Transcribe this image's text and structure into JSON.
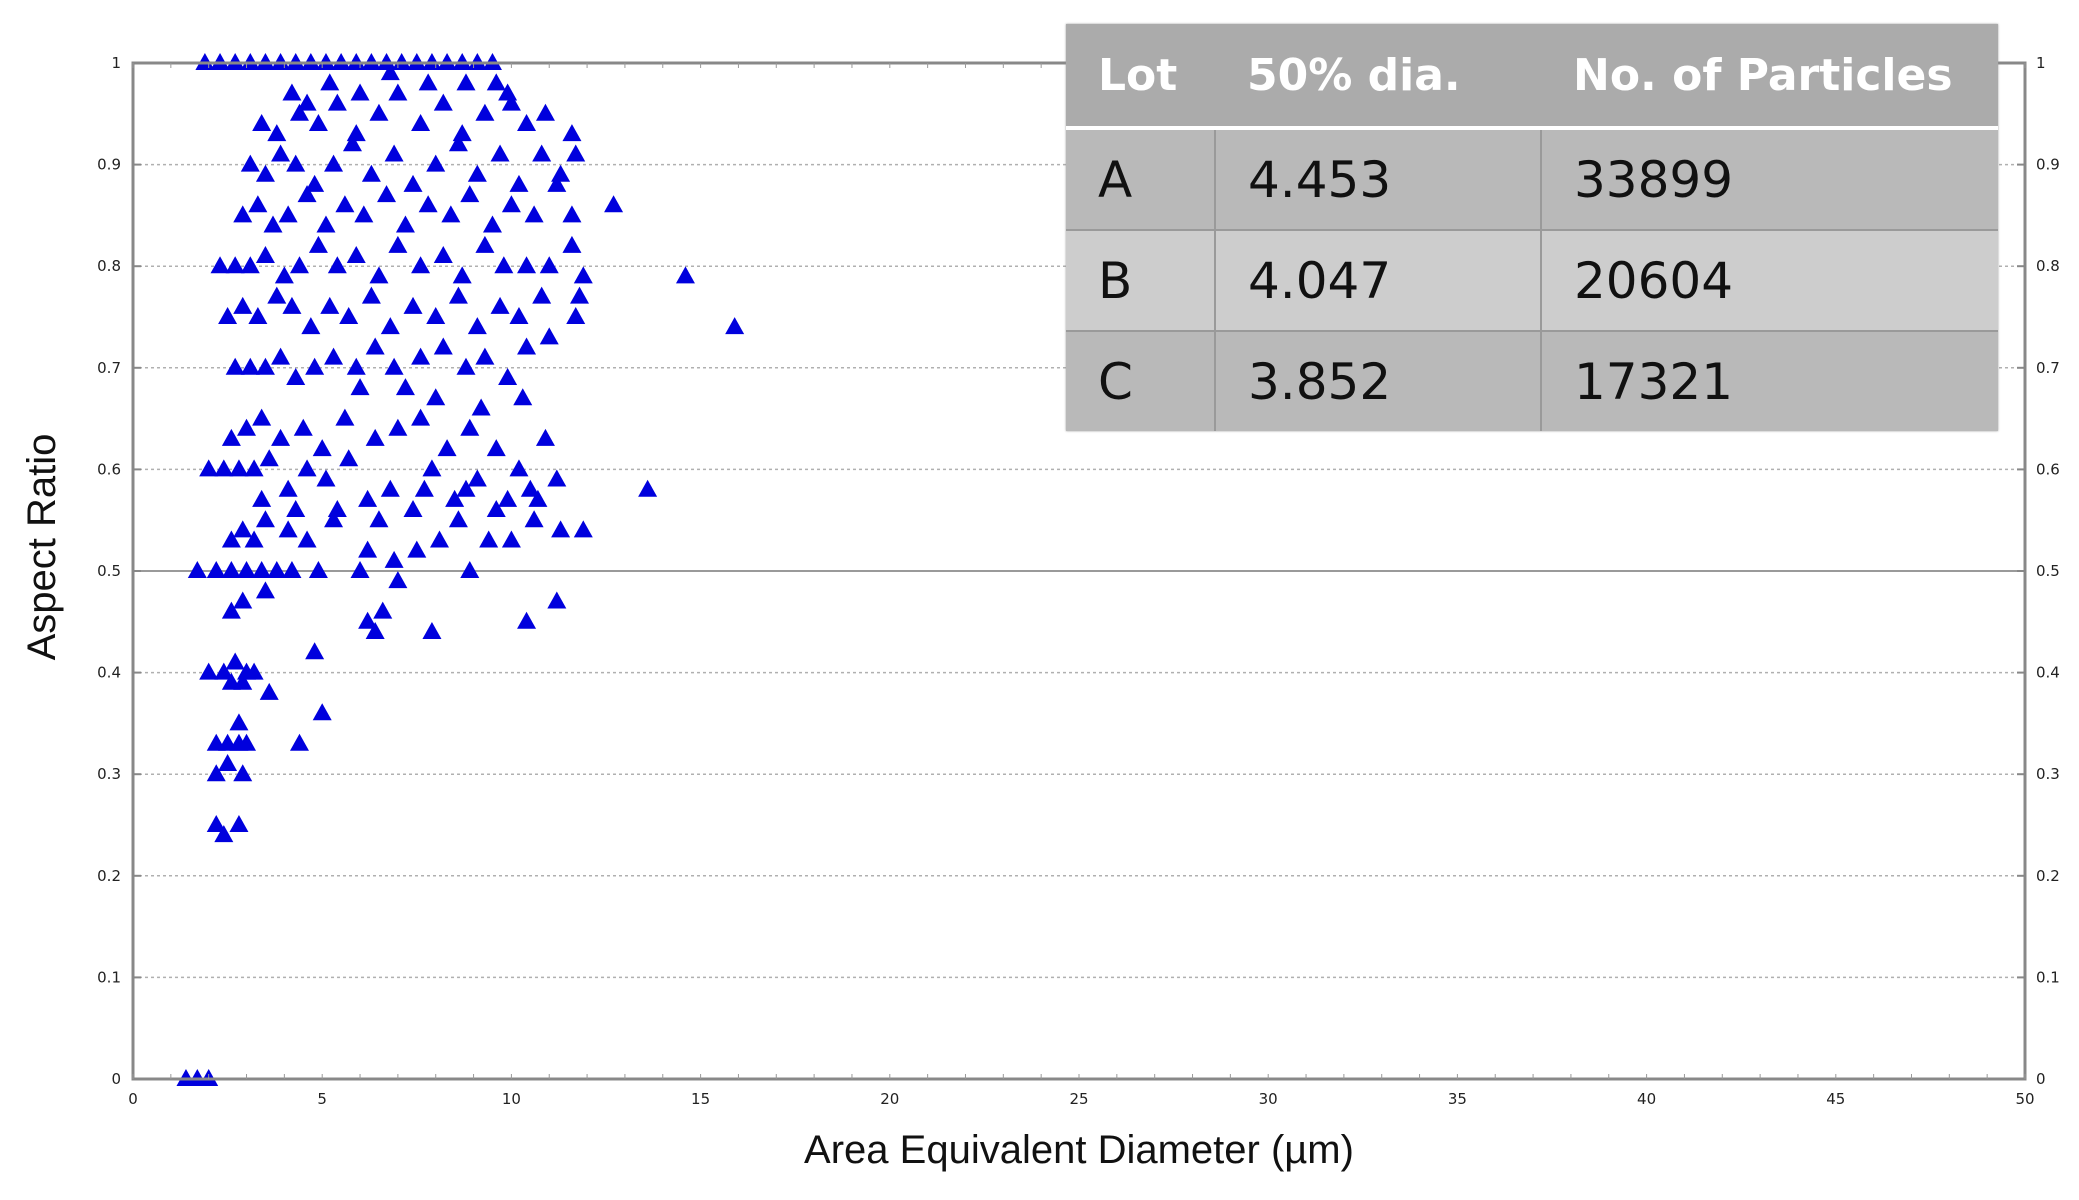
{
  "chart_data": {
    "type": "scatter",
    "title": "",
    "xlabel": "Area Equivalent Diameter (µm)",
    "ylabel": "Aspect Ratio",
    "xlim": [
      0,
      50
    ],
    "ylim": [
      0,
      1
    ],
    "x_ticks": [
      "0",
      "5",
      "10",
      "15",
      "20",
      "25",
      "30",
      "35",
      "40",
      "45",
      "50"
    ],
    "y_ticks": [
      "0",
      "0.1",
      "0.2",
      "0.3",
      "0.4",
      "0.5",
      "0.6",
      "0.7",
      "0.8",
      "0.9",
      "1"
    ],
    "y_ticks_right": [
      "0",
      "0.1",
      "0.2",
      "0.3",
      "0.4",
      "0.5",
      "0.6",
      "0.7",
      "0.8",
      "0.9",
      "1"
    ],
    "grid": "horizontal-dotted",
    "marker": "triangle",
    "marker_color": "#0000dd",
    "series": [
      {
        "points": [
          [
            1.4,
            0
          ],
          [
            1.7,
            0
          ],
          [
            2.0,
            0
          ],
          [
            2.2,
            0.25
          ],
          [
            2.4,
            0.24
          ],
          [
            2.8,
            0.25
          ],
          [
            2.2,
            0.3
          ],
          [
            2.5,
            0.31
          ],
          [
            2.9,
            0.3
          ],
          [
            4.4,
            0.33
          ],
          [
            5.0,
            0.36
          ],
          [
            2.2,
            0.33
          ],
          [
            2.5,
            0.33
          ],
          [
            2.8,
            0.33
          ],
          [
            3.0,
            0.33
          ],
          [
            2.8,
            0.35
          ],
          [
            2.0,
            0.4
          ],
          [
            2.4,
            0.4
          ],
          [
            2.7,
            0.41
          ],
          [
            3.0,
            0.4
          ],
          [
            3.2,
            0.4
          ],
          [
            2.6,
            0.39
          ],
          [
            2.9,
            0.39
          ],
          [
            3.6,
            0.38
          ],
          [
            4.8,
            0.42
          ],
          [
            2.6,
            0.46
          ],
          [
            2.9,
            0.47
          ],
          [
            3.5,
            0.48
          ],
          [
            6.4,
            0.44
          ],
          [
            7.9,
            0.44
          ],
          [
            10.4,
            0.45
          ],
          [
            11.2,
            0.47
          ],
          [
            6.2,
            0.45
          ],
          [
            6.6,
            0.46
          ],
          [
            1.7,
            0.5
          ],
          [
            2.2,
            0.5
          ],
          [
            2.6,
            0.5
          ],
          [
            3.0,
            0.5
          ],
          [
            3.4,
            0.5
          ],
          [
            3.8,
            0.5
          ],
          [
            4.2,
            0.5
          ],
          [
            4.9,
            0.5
          ],
          [
            6.0,
            0.5
          ],
          [
            7.0,
            0.49
          ],
          [
            8.9,
            0.5
          ],
          [
            2.6,
            0.53
          ],
          [
            2.9,
            0.54
          ],
          [
            3.2,
            0.53
          ],
          [
            3.5,
            0.55
          ],
          [
            4.1,
            0.54
          ],
          [
            4.6,
            0.53
          ],
          [
            5.4,
            0.56
          ],
          [
            6.2,
            0.52
          ],
          [
            6.9,
            0.51
          ],
          [
            7.5,
            0.52
          ],
          [
            8.1,
            0.53
          ],
          [
            8.6,
            0.55
          ],
          [
            9.4,
            0.53
          ],
          [
            10.0,
            0.53
          ],
          [
            10.6,
            0.55
          ],
          [
            11.3,
            0.54
          ],
          [
            11.9,
            0.54
          ],
          [
            13.6,
            0.58
          ],
          [
            2.0,
            0.6
          ],
          [
            2.4,
            0.6
          ],
          [
            2.8,
            0.6
          ],
          [
            3.2,
            0.6
          ],
          [
            3.6,
            0.61
          ],
          [
            4.1,
            0.58
          ],
          [
            4.6,
            0.6
          ],
          [
            5.1,
            0.59
          ],
          [
            5.7,
            0.61
          ],
          [
            6.2,
            0.57
          ],
          [
            6.8,
            0.58
          ],
          [
            7.4,
            0.56
          ],
          [
            7.9,
            0.6
          ],
          [
            8.5,
            0.57
          ],
          [
            9.1,
            0.59
          ],
          [
            9.6,
            0.56
          ],
          [
            10.2,
            0.6
          ],
          [
            10.7,
            0.57
          ],
          [
            11.2,
            0.59
          ],
          [
            3.4,
            0.57
          ],
          [
            4.3,
            0.56
          ],
          [
            5.3,
            0.55
          ],
          [
            6.5,
            0.55
          ],
          [
            7.7,
            0.58
          ],
          [
            8.8,
            0.58
          ],
          [
            9.9,
            0.57
          ],
          [
            10.5,
            0.58
          ],
          [
            2.6,
            0.63
          ],
          [
            3.0,
            0.64
          ],
          [
            3.4,
            0.65
          ],
          [
            3.9,
            0.63
          ],
          [
            4.5,
            0.64
          ],
          [
            5.0,
            0.62
          ],
          [
            5.6,
            0.65
          ],
          [
            6.4,
            0.63
          ],
          [
            7.0,
            0.64
          ],
          [
            7.6,
            0.65
          ],
          [
            8.3,
            0.62
          ],
          [
            8.9,
            0.64
          ],
          [
            9.6,
            0.62
          ],
          [
            10.3,
            0.67
          ],
          [
            10.9,
            0.63
          ],
          [
            6.0,
            0.68
          ],
          [
            7.2,
            0.68
          ],
          [
            8.0,
            0.67
          ],
          [
            9.2,
            0.66
          ],
          [
            2.7,
            0.7
          ],
          [
            3.1,
            0.7
          ],
          [
            3.5,
            0.7
          ],
          [
            3.9,
            0.71
          ],
          [
            4.3,
            0.69
          ],
          [
            4.8,
            0.7
          ],
          [
            5.3,
            0.71
          ],
          [
            5.9,
            0.7
          ],
          [
            6.4,
            0.72
          ],
          [
            6.9,
            0.7
          ],
          [
            7.6,
            0.71
          ],
          [
            8.2,
            0.72
          ],
          [
            8.8,
            0.7
          ],
          [
            9.3,
            0.71
          ],
          [
            9.9,
            0.69
          ],
          [
            10.4,
            0.72
          ],
          [
            11.0,
            0.73
          ],
          [
            11.7,
            0.75
          ],
          [
            2.5,
            0.75
          ],
          [
            2.9,
            0.76
          ],
          [
            3.3,
            0.75
          ],
          [
            3.8,
            0.77
          ],
          [
            4.2,
            0.76
          ],
          [
            4.7,
            0.74
          ],
          [
            5.2,
            0.76
          ],
          [
            5.7,
            0.75
          ],
          [
            6.3,
            0.77
          ],
          [
            6.8,
            0.74
          ],
          [
            7.4,
            0.76
          ],
          [
            8.0,
            0.75
          ],
          [
            8.6,
            0.77
          ],
          [
            9.1,
            0.74
          ],
          [
            9.7,
            0.76
          ],
          [
            10.2,
            0.75
          ],
          [
            10.8,
            0.77
          ],
          [
            11.8,
            0.77
          ],
          [
            11.9,
            0.79
          ],
          [
            14.6,
            0.79
          ],
          [
            15.9,
            0.74
          ],
          [
            2.3,
            0.8
          ],
          [
            2.7,
            0.8
          ],
          [
            3.1,
            0.8
          ],
          [
            3.5,
            0.81
          ],
          [
            4.0,
            0.79
          ],
          [
            4.4,
            0.8
          ],
          [
            4.9,
            0.82
          ],
          [
            5.4,
            0.8
          ],
          [
            5.9,
            0.81
          ],
          [
            6.5,
            0.79
          ],
          [
            7.0,
            0.82
          ],
          [
            7.6,
            0.8
          ],
          [
            8.2,
            0.81
          ],
          [
            8.7,
            0.79
          ],
          [
            9.3,
            0.82
          ],
          [
            9.8,
            0.8
          ],
          [
            10.4,
            0.8
          ],
          [
            11.0,
            0.8
          ],
          [
            11.6,
            0.82
          ],
          [
            2.9,
            0.85
          ],
          [
            3.3,
            0.86
          ],
          [
            3.7,
            0.84
          ],
          [
            4.1,
            0.85
          ],
          [
            4.6,
            0.87
          ],
          [
            5.1,
            0.84
          ],
          [
            5.6,
            0.86
          ],
          [
            6.1,
            0.85
          ],
          [
            6.7,
            0.87
          ],
          [
            7.2,
            0.84
          ],
          [
            7.8,
            0.86
          ],
          [
            8.4,
            0.85
          ],
          [
            8.9,
            0.87
          ],
          [
            9.5,
            0.84
          ],
          [
            10.0,
            0.86
          ],
          [
            10.6,
            0.85
          ],
          [
            11.2,
            0.88
          ],
          [
            11.6,
            0.85
          ],
          [
            12.7,
            0.86
          ],
          [
            3.1,
            0.9
          ],
          [
            3.5,
            0.89
          ],
          [
            3.9,
            0.91
          ],
          [
            4.3,
            0.9
          ],
          [
            4.8,
            0.88
          ],
          [
            5.3,
            0.9
          ],
          [
            5.8,
            0.92
          ],
          [
            6.3,
            0.89
          ],
          [
            6.9,
            0.91
          ],
          [
            7.4,
            0.88
          ],
          [
            8.0,
            0.9
          ],
          [
            8.6,
            0.92
          ],
          [
            9.1,
            0.89
          ],
          [
            9.7,
            0.91
          ],
          [
            10.2,
            0.88
          ],
          [
            10.8,
            0.91
          ],
          [
            11.3,
            0.89
          ],
          [
            11.7,
            0.91
          ],
          [
            11.6,
            0.93
          ],
          [
            3.4,
            0.94
          ],
          [
            3.8,
            0.93
          ],
          [
            4.4,
            0.95
          ],
          [
            4.9,
            0.94
          ],
          [
            5.4,
            0.96
          ],
          [
            5.9,
            0.93
          ],
          [
            6.5,
            0.95
          ],
          [
            7.0,
            0.97
          ],
          [
            7.6,
            0.94
          ],
          [
            8.2,
            0.96
          ],
          [
            8.7,
            0.93
          ],
          [
            9.3,
            0.95
          ],
          [
            9.9,
            0.97
          ],
          [
            10.4,
            0.94
          ],
          [
            10.9,
            0.95
          ],
          [
            4.2,
            0.97
          ],
          [
            4.6,
            0.96
          ],
          [
            5.2,
            0.98
          ],
          [
            6.0,
            0.97
          ],
          [
            6.8,
            0.99
          ],
          [
            7.8,
            0.98
          ],
          [
            8.8,
            0.98
          ],
          [
            9.6,
            0.98
          ],
          [
            10.0,
            0.96
          ],
          [
            1.9,
            1
          ],
          [
            2.3,
            1
          ],
          [
            2.7,
            1
          ],
          [
            3.1,
            1
          ],
          [
            3.5,
            1
          ],
          [
            3.9,
            1
          ],
          [
            4.3,
            1
          ],
          [
            4.7,
            1
          ],
          [
            5.1,
            1
          ],
          [
            5.5,
            1
          ],
          [
            5.9,
            1
          ],
          [
            6.3,
            1
          ],
          [
            6.7,
            1
          ],
          [
            7.1,
            1
          ],
          [
            7.5,
            1
          ],
          [
            7.9,
            1
          ],
          [
            8.3,
            1
          ],
          [
            8.7,
            1
          ],
          [
            9.1,
            1
          ],
          [
            9.5,
            1
          ]
        ]
      }
    ],
    "table": {
      "headers": [
        "Lot",
        "50% dia.",
        "No. of Particles"
      ],
      "rows": [
        [
          "A",
          "4.453",
          "33899"
        ],
        [
          "B",
          "4.047",
          "20604"
        ],
        [
          "C",
          "3.852",
          "17321"
        ]
      ]
    }
  }
}
